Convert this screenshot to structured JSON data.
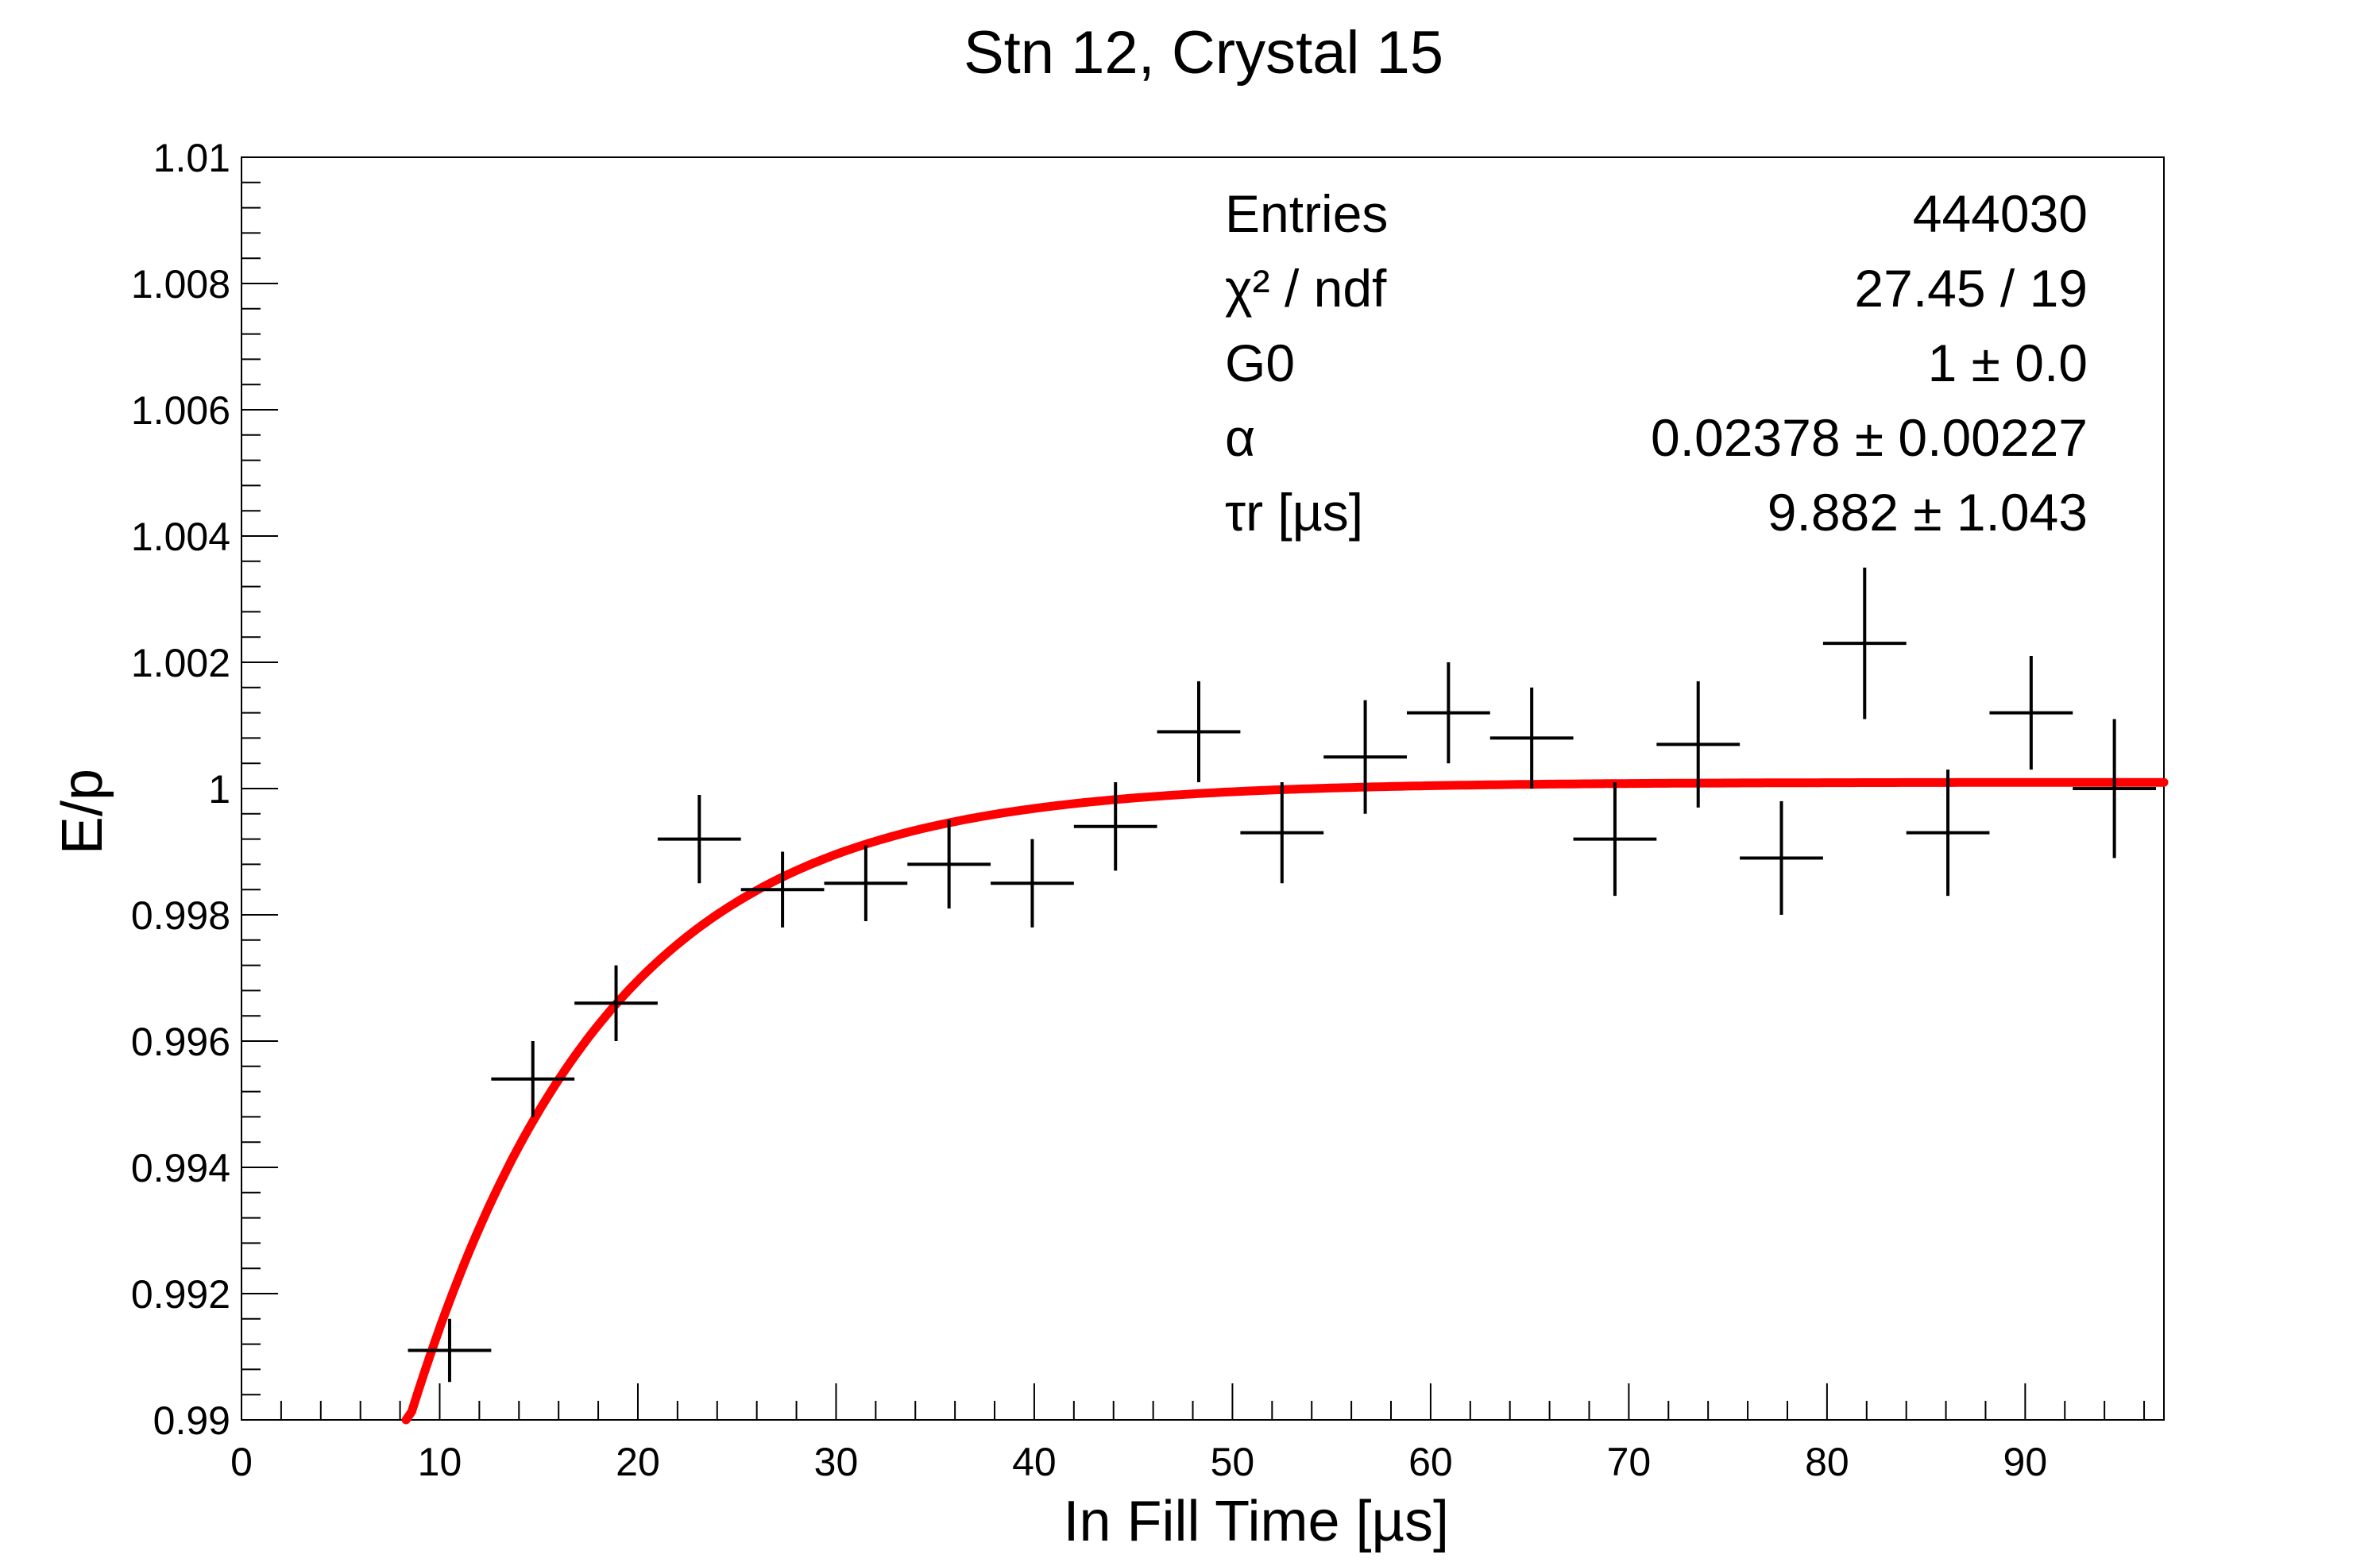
{
  "chart_data": {
    "type": "scatter",
    "title": "Stn 12, Crystal 15",
    "xlabel": "In Fill Time [µs]",
    "ylabel": "E/p",
    "xlim": [
      0,
      97
    ],
    "ylim": [
      0.99,
      1.01
    ],
    "x_ticks": [
      "0",
      "10",
      "20",
      "30",
      "40",
      "50",
      "60",
      "70",
      "80",
      "90"
    ],
    "y_ticks": [
      "0.99",
      "0.992",
      "0.994",
      "0.996",
      "0.998",
      "1",
      "1.002",
      "1.004",
      "1.006",
      "1.008",
      "1.01"
    ],
    "bin_half_width": 2.1,
    "points": [
      {
        "x": 10.5,
        "y": 0.9911,
        "err": 0.0005
      },
      {
        "x": 14.7,
        "y": 0.9954,
        "err": 0.0006
      },
      {
        "x": 18.9,
        "y": 0.9966,
        "err": 0.0006
      },
      {
        "x": 23.1,
        "y": 0.9992,
        "err": 0.0007
      },
      {
        "x": 27.3,
        "y": 0.9984,
        "err": 0.0006
      },
      {
        "x": 31.5,
        "y": 0.9985,
        "err": 0.0006
      },
      {
        "x": 35.7,
        "y": 0.9988,
        "err": 0.0007
      },
      {
        "x": 39.9,
        "y": 0.9985,
        "err": 0.0007
      },
      {
        "x": 44.1,
        "y": 0.9994,
        "err": 0.0007
      },
      {
        "x": 48.3,
        "y": 1.0009,
        "err": 0.0008
      },
      {
        "x": 52.5,
        "y": 0.9993,
        "err": 0.0008
      },
      {
        "x": 56.7,
        "y": 1.0005,
        "err": 0.0009
      },
      {
        "x": 60.9,
        "y": 1.0012,
        "err": 0.0008
      },
      {
        "x": 65.1,
        "y": 1.0008,
        "err": 0.0008
      },
      {
        "x": 69.3,
        "y": 0.9992,
        "err": 0.0009
      },
      {
        "x": 73.5,
        "y": 1.0007,
        "err": 0.001
      },
      {
        "x": 77.7,
        "y": 0.9989,
        "err": 0.0009
      },
      {
        "x": 81.9,
        "y": 1.0023,
        "err": 0.0012
      },
      {
        "x": 86.1,
        "y": 0.9993,
        "err": 0.001
      },
      {
        "x": 90.3,
        "y": 1.0012,
        "err": 0.0009
      },
      {
        "x": 94.5,
        "y": 1.0,
        "err": 0.0011
      }
    ],
    "fit": {
      "function": "G0*(1 - alpha*exp(-t/tau))",
      "G0": 1.0001,
      "alpha": 0.02378,
      "tau": 9.882,
      "x_range": [
        8.3,
        97
      ],
      "color": "#ff0000"
    },
    "stats_box": {
      "rows": [
        {
          "label": "Entries",
          "value": "444030"
        },
        {
          "label": "χ² / ndf",
          "value": "27.45 / 19"
        },
        {
          "label": "G0",
          "value": "1 ± 0.0"
        },
        {
          "label": "α",
          "value": "0.02378 ± 0.00227"
        },
        {
          "label": "τr [µs]",
          "value": "9.882 ± 1.043"
        }
      ]
    },
    "marker_color": "#000000"
  }
}
